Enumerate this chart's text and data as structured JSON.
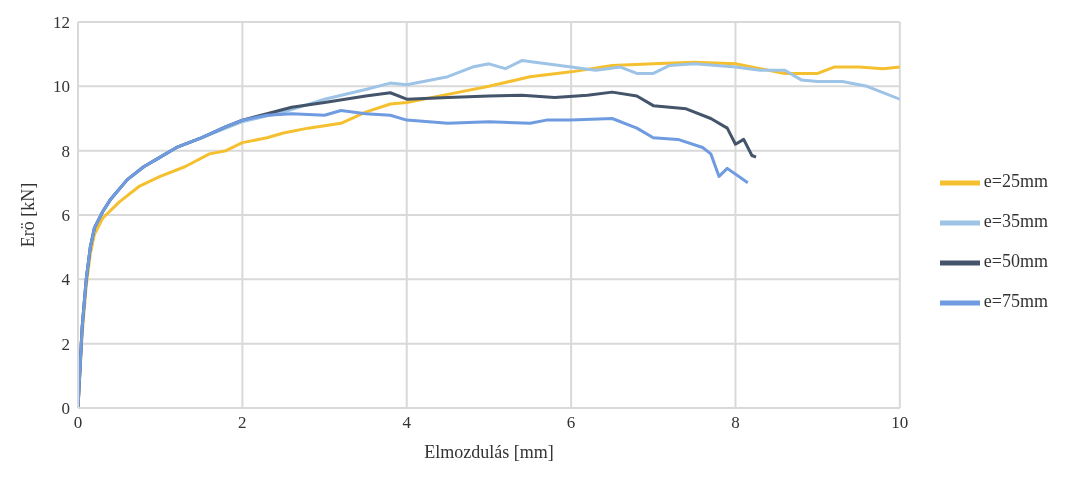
{
  "chart_data": {
    "type": "line",
    "xlabel": "Elmozdulás [mm]",
    "ylabel": "Erö [kN]",
    "xlim": [
      0,
      10
    ],
    "xticks": [
      0,
      2,
      4,
      6,
      8,
      10
    ],
    "ylim": [
      0,
      12
    ],
    "yticks": [
      0,
      2,
      4,
      6,
      8,
      10,
      12
    ],
    "grid": true,
    "legend": "right",
    "marker": "none",
    "line_style": "solid",
    "series": [
      {
        "name": "e=25mm",
        "color": "#f5c02f",
        "x": [
          0,
          0.05,
          0.1,
          0.15,
          0.2,
          0.3,
          0.5,
          0.75,
          1,
          1.3,
          1.6,
          1.8,
          2,
          2.3,
          2.5,
          2.8,
          3.2,
          3.5,
          3.8,
          4,
          4.5,
          5,
          5.5,
          6,
          6.5,
          7,
          7.5,
          8,
          8.3,
          8.6,
          9,
          9.2,
          9.5,
          9.8,
          10
        ],
        "values": [
          0,
          2.3,
          3.8,
          4.8,
          5.4,
          5.9,
          6.4,
          6.9,
          7.2,
          7.5,
          7.9,
          8.0,
          8.25,
          8.4,
          8.55,
          8.7,
          8.85,
          9.2,
          9.45,
          9.5,
          9.75,
          10.0,
          10.3,
          10.45,
          10.65,
          10.7,
          10.75,
          10.7,
          10.55,
          10.4,
          10.4,
          10.6,
          10.6,
          10.55,
          10.6
        ]
      },
      {
        "name": "e=35mm",
        "color": "#9dc3e6",
        "x": [
          0,
          0.05,
          0.1,
          0.15,
          0.2,
          0.3,
          0.4,
          0.6,
          0.8,
          1,
          1.2,
          1.5,
          1.8,
          2,
          2.5,
          3,
          3.5,
          3.8,
          4,
          4.5,
          4.8,
          5,
          5.2,
          5.4,
          5.7,
          6,
          6.3,
          6.6,
          6.8,
          7,
          7.2,
          7.5,
          8,
          8.3,
          8.6,
          8.8,
          9,
          9.3,
          9.6,
          10
        ],
        "values": [
          0,
          2.5,
          4,
          5,
          5.6,
          6.1,
          6.5,
          7.1,
          7.5,
          7.8,
          8.1,
          8.4,
          8.7,
          8.9,
          9.2,
          9.6,
          9.9,
          10.1,
          10.05,
          10.3,
          10.6,
          10.7,
          10.55,
          10.8,
          10.7,
          10.6,
          10.5,
          10.6,
          10.4,
          10.4,
          10.65,
          10.7,
          10.6,
          10.5,
          10.5,
          10.2,
          10.15,
          10.15,
          10.0,
          9.6
        ]
      },
      {
        "name": "e=50mm",
        "color": "#44546a",
        "x": [
          0,
          0.05,
          0.1,
          0.15,
          0.2,
          0.3,
          0.4,
          0.6,
          0.8,
          1,
          1.2,
          1.5,
          1.8,
          2,
          2.3,
          2.6,
          3,
          3.5,
          3.8,
          4,
          4.5,
          5,
          5.4,
          5.8,
          6.2,
          6.5,
          6.8,
          7,
          7.4,
          7.7,
          7.9,
          8,
          8.1,
          8.2,
          8.25
        ],
        "values": [
          0,
          2.5,
          4,
          5,
          5.6,
          6.1,
          6.5,
          7.1,
          7.5,
          7.8,
          8.1,
          8.4,
          8.75,
          8.95,
          9.15,
          9.35,
          9.5,
          9.7,
          9.8,
          9.6,
          9.65,
          9.7,
          9.72,
          9.65,
          9.72,
          9.82,
          9.7,
          9.4,
          9.3,
          9.0,
          8.7,
          8.2,
          8.35,
          7.85,
          7.8
        ]
      },
      {
        "name": "e=75mm",
        "color": "#6f9be0",
        "x": [
          0,
          0.05,
          0.1,
          0.15,
          0.2,
          0.3,
          0.4,
          0.6,
          0.8,
          1,
          1.2,
          1.5,
          1.8,
          2,
          2.3,
          2.6,
          3,
          3.2,
          3.5,
          3.8,
          4,
          4.5,
          5,
          5.5,
          5.7,
          6,
          6.5,
          6.8,
          7,
          7.3,
          7.6,
          7.7,
          7.8,
          7.9,
          8.15
        ],
        "values": [
          0,
          2.5,
          4,
          5,
          5.6,
          6.1,
          6.5,
          7.1,
          7.5,
          7.8,
          8.1,
          8.4,
          8.75,
          8.95,
          9.1,
          9.15,
          9.1,
          9.25,
          9.15,
          9.1,
          8.95,
          8.85,
          8.9,
          8.85,
          8.95,
          8.95,
          9.0,
          8.7,
          8.4,
          8.35,
          8.1,
          7.9,
          7.2,
          7.45,
          7.0
        ]
      }
    ]
  }
}
